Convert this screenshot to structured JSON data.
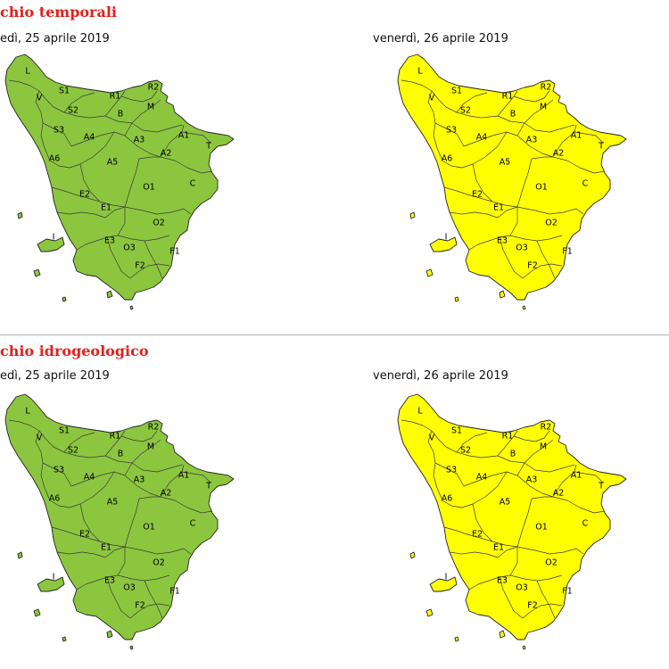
{
  "colors": {
    "title": "#e0201b",
    "green": "#8cc63f",
    "yellow": "#ffff00",
    "divider": "#b4b4b4"
  },
  "sections": [
    {
      "title": "chio temporali",
      "maps": [
        {
          "date": "edì, 25 aprile 2019",
          "color": "green"
        },
        {
          "date": "venerdì, 26 aprile 2019",
          "color": "yellow"
        }
      ]
    },
    {
      "title": "chio idrogeologico",
      "maps": [
        {
          "date": "edì, 25 aprile 2019",
          "color": "green"
        },
        {
          "date": "venerdì, 26 aprile 2019",
          "color": "yellow"
        }
      ]
    }
  ],
  "zones": [
    "L",
    "V",
    "S1",
    "R1",
    "R2",
    "S2",
    "B",
    "M",
    "S3",
    "A4",
    "A3",
    "A1",
    "T",
    "A6",
    "A5",
    "A2",
    "C",
    "O1",
    "E2",
    "E1",
    "O2",
    "I",
    "E3",
    "O3",
    "F1",
    "F2"
  ]
}
